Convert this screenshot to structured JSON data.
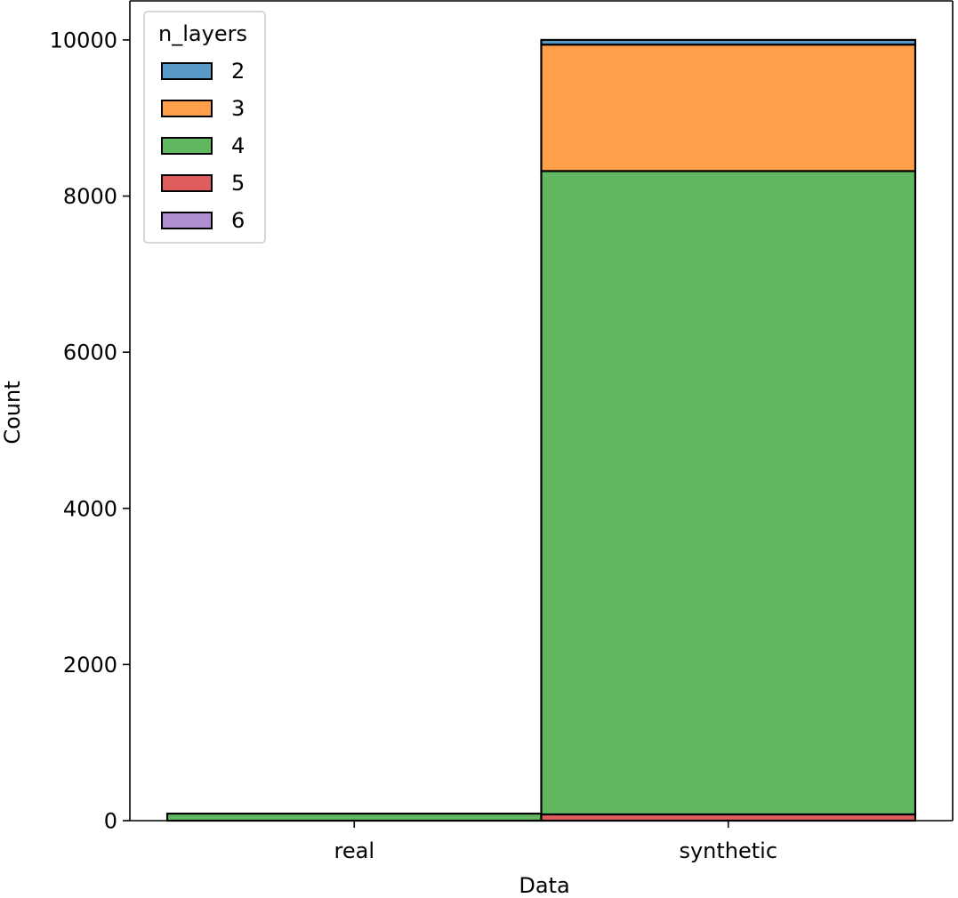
{
  "chart_data": {
    "type": "bar",
    "stacked": true,
    "xlabel": "Data",
    "ylabel": "Count",
    "categories": [
      "real",
      "synthetic"
    ],
    "ylim": [
      0,
      10500
    ],
    "yticks": [
      0,
      2000,
      4000,
      6000,
      8000,
      10000
    ],
    "legend": {
      "title": "n_layers",
      "placement": "top-left"
    },
    "series": [
      {
        "name": "5",
        "color": "#d62728",
        "values": [
          0,
          80
        ]
      },
      {
        "name": "4",
        "color": "#2ca02c",
        "values": [
          90,
          8240
        ]
      },
      {
        "name": "3",
        "color": "#ff7f0e",
        "values": [
          0,
          1620
        ]
      },
      {
        "name": "2",
        "color": "#1f77b4",
        "values": [
          0,
          60
        ]
      },
      {
        "name": "6",
        "color": "#9467bd",
        "values": [
          0,
          0
        ]
      }
    ],
    "legend_order": [
      "2",
      "3",
      "4",
      "5",
      "6"
    ],
    "grid": false
  }
}
